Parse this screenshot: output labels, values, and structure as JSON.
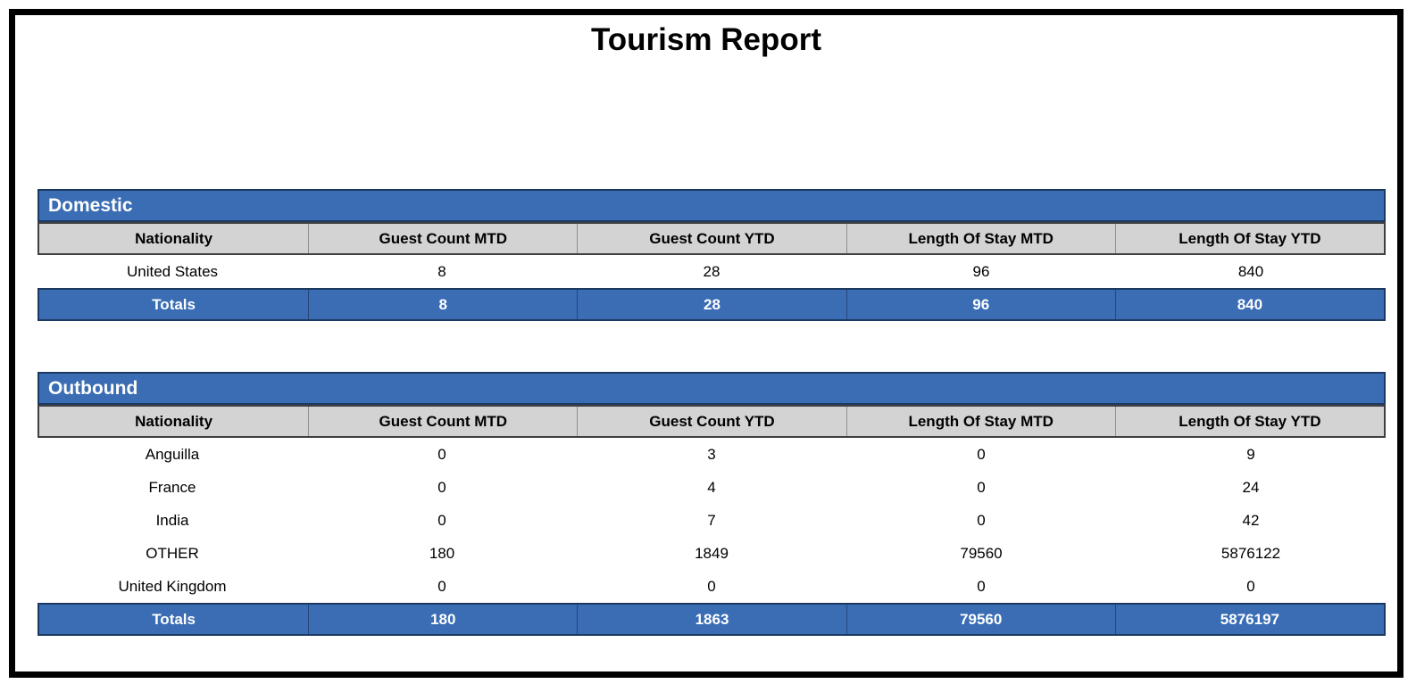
{
  "report": {
    "title": "Tourism Report"
  },
  "columns": [
    "Nationality",
    "Guest Count MTD",
    "Guest Count YTD",
    "Length Of Stay MTD",
    "Length Of Stay YTD"
  ],
  "sections": [
    {
      "id": "domestic",
      "name": "Domestic",
      "rows": [
        [
          "United States",
          "8",
          "28",
          "96",
          "840"
        ]
      ],
      "totals": [
        "Totals",
        "8",
        "28",
        "96",
        "840"
      ]
    },
    {
      "id": "outbound",
      "name": "Outbound",
      "rows": [
        [
          "Anguilla",
          "0",
          "3",
          "0",
          "9"
        ],
        [
          "France",
          "0",
          "4",
          "0",
          "24"
        ],
        [
          "India",
          "0",
          "7",
          "0",
          "42"
        ],
        [
          "OTHER",
          "180",
          "1849",
          "79560",
          "5876122"
        ],
        [
          "United Kingdom",
          "0",
          "0",
          "0",
          "0"
        ]
      ],
      "totals": [
        "Totals",
        "180",
        "1863",
        "79560",
        "5876197"
      ]
    }
  ],
  "colors": {
    "accent_blue": "#3a6db4",
    "accent_blue_border": "#1c3a61",
    "header_gray": "#d3d3d3",
    "header_gray_border": "#404040",
    "page_border": "#000000",
    "totals_text": "#ffffff"
  }
}
